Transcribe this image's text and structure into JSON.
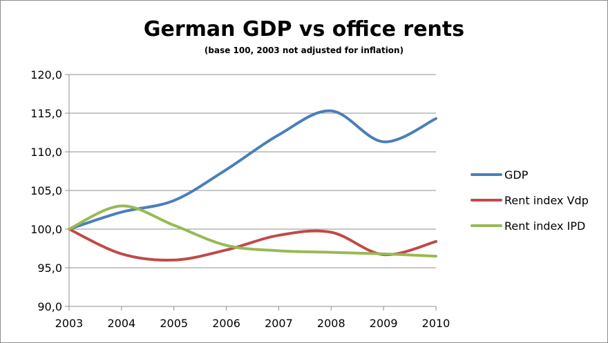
{
  "chart_data": {
    "type": "line",
    "title": "German GDP vs office rents",
    "subtitle": "(base 100, 2003 not adjusted for inflation)",
    "xlabel": "",
    "ylabel": "",
    "categories": [
      "2003",
      "2004",
      "2005",
      "2006",
      "2007",
      "2008",
      "2009",
      "2010"
    ],
    "ylim": [
      90,
      120
    ],
    "yticks": [
      90,
      95,
      100,
      105,
      110,
      115,
      120
    ],
    "ytick_labels": [
      "90,0",
      "95,0",
      "100,0",
      "105,0",
      "110,0",
      "115,0",
      "120,0"
    ],
    "grid": true,
    "legend_position": "right",
    "series": [
      {
        "name": "GDP",
        "color": "#4a7ebb",
        "values": [
          100.0,
          102.2,
          103.7,
          107.7,
          112.2,
          115.3,
          111.3,
          114.3
        ]
      },
      {
        "name": "Rent index Vdp",
        "color": "#be4b48",
        "values": [
          100.0,
          96.8,
          96.0,
          97.3,
          99.2,
          99.6,
          96.7,
          98.4
        ]
      },
      {
        "name": "Rent index IPD",
        "color": "#98b954",
        "values": [
          100.0,
          103.0,
          100.5,
          97.9,
          97.2,
          97.0,
          96.8,
          96.5
        ]
      }
    ]
  }
}
